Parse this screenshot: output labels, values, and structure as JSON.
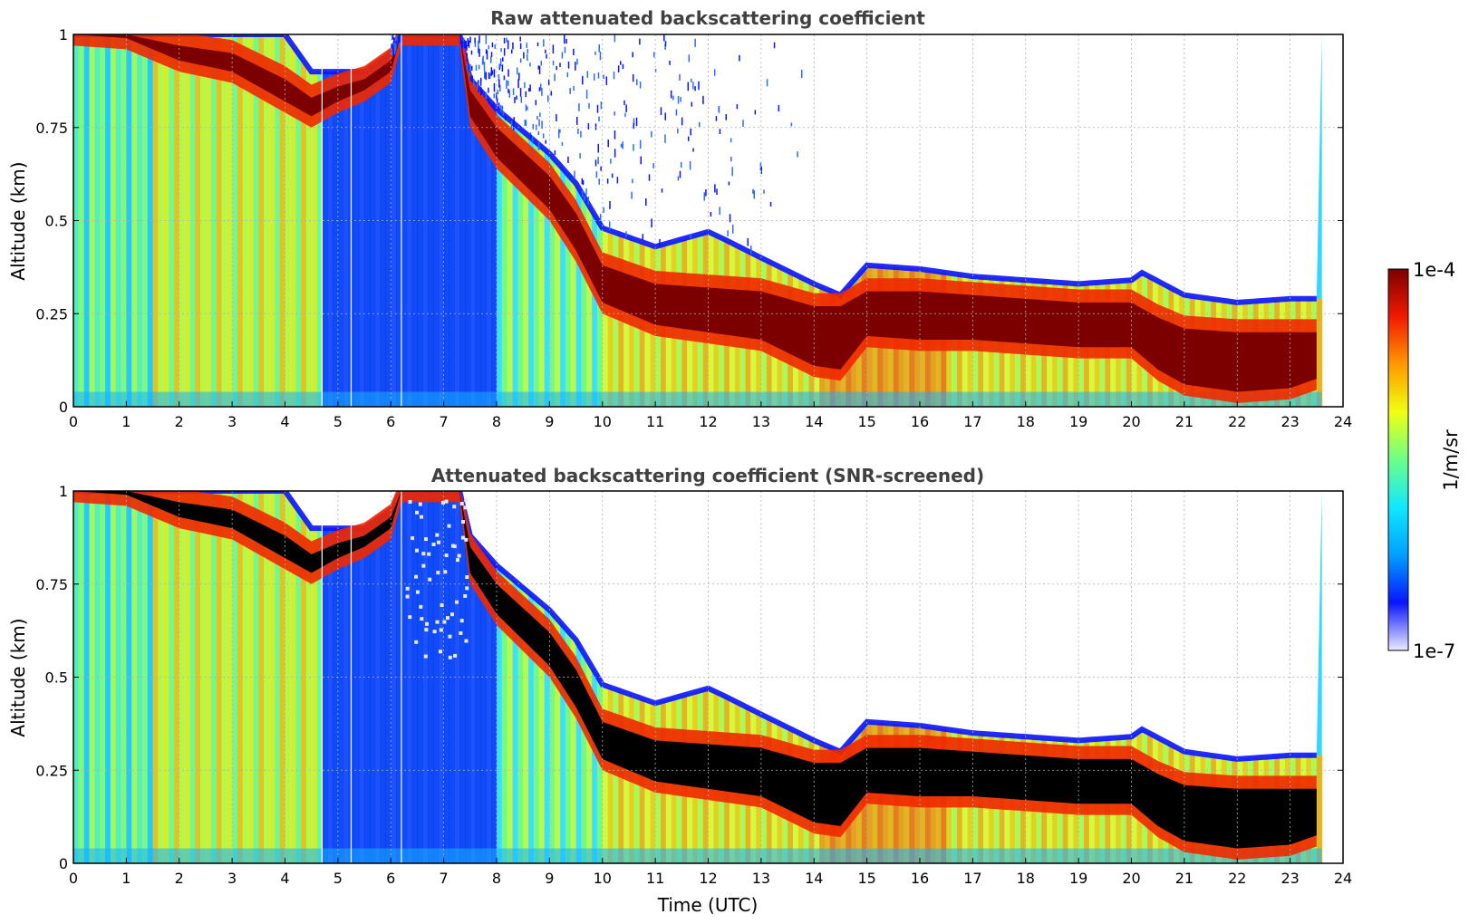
{
  "chart_data": [
    {
      "type": "heatmap",
      "title": "Raw attenuated backscattering coefficient",
      "xlabel": "",
      "ylabel": "Altitude (km)",
      "xlim": [
        0,
        24
      ],
      "ylim": [
        0,
        1
      ],
      "xticks": [
        "0",
        "1",
        "2",
        "3",
        "4",
        "5",
        "6",
        "7",
        "8",
        "9",
        "10",
        "11",
        "12",
        "13",
        "14",
        "15",
        "16",
        "17",
        "18",
        "19",
        "20",
        "21",
        "22",
        "23",
        "24"
      ],
      "yticks": [
        "0",
        "0.25",
        "0.5",
        "0.75",
        "1"
      ],
      "grid": true,
      "screened": false,
      "layer_top_km": {
        "time": [
          0,
          1,
          2,
          3,
          4,
          4.5,
          5,
          5.5,
          6,
          6.2,
          7.3,
          7.5,
          8,
          9,
          9.5,
          10,
          11,
          12,
          12.3,
          13,
          14,
          14.5,
          15,
          16,
          17,
          18,
          19,
          20,
          20.2,
          21,
          22,
          23,
          23.6
        ],
        "top_km": [
          1,
          1,
          1,
          1,
          1,
          0.9,
          0.9,
          0.9,
          0.95,
          1,
          1,
          0.88,
          0.8,
          0.68,
          0.6,
          0.48,
          0.43,
          0.47,
          0.45,
          0.4,
          0.33,
          0.3,
          0.38,
          0.37,
          0.35,
          0.34,
          0.33,
          0.34,
          0.36,
          0.3,
          0.28,
          0.29,
          0.29
        ]
      },
      "layer_core_km": {
        "time": [
          0,
          1,
          2,
          3,
          4,
          4.5,
          5,
          5.5,
          6,
          6.2,
          7.3,
          7.5,
          8,
          9,
          9.5,
          10,
          11,
          12,
          13,
          14,
          14.5,
          15,
          16,
          17,
          18,
          19,
          20,
          20.5,
          21,
          22,
          23,
          23.6
        ],
        "top_km": [
          1,
          1,
          0.97,
          0.95,
          0.88,
          0.83,
          0.86,
          0.88,
          0.93,
          1,
          1,
          0.85,
          0.75,
          0.62,
          0.52,
          0.38,
          0.33,
          0.32,
          0.31,
          0.27,
          0.27,
          0.31,
          0.31,
          0.3,
          0.29,
          0.28,
          0.28,
          0.24,
          0.21,
          0.2,
          0.2,
          0.2
        ],
        "bottom_km": [
          1,
          0.99,
          0.93,
          0.9,
          0.82,
          0.78,
          0.82,
          0.85,
          0.9,
          1,
          1,
          0.78,
          0.67,
          0.53,
          0.42,
          0.28,
          0.22,
          0.2,
          0.18,
          0.11,
          0.1,
          0.19,
          0.18,
          0.18,
          0.17,
          0.16,
          0.16,
          0.1,
          0.06,
          0.04,
          0.05,
          0.08
        ]
      }
    },
    {
      "type": "heatmap",
      "title": "Attenuated backscattering coefficient (SNR-screened)",
      "xlabel": "Time (UTC)",
      "ylabel": "Altitude (km)",
      "xlim": [
        0,
        24
      ],
      "ylim": [
        0,
        1
      ],
      "xticks": [
        "0",
        "1",
        "2",
        "3",
        "4",
        "5",
        "6",
        "7",
        "8",
        "9",
        "10",
        "11",
        "12",
        "13",
        "14",
        "15",
        "16",
        "17",
        "18",
        "19",
        "20",
        "21",
        "22",
        "23",
        "24"
      ],
      "yticks": [
        "0",
        "0.25",
        "0.5",
        "0.75",
        "1"
      ],
      "grid": true,
      "screened": true
    }
  ],
  "colorbar": {
    "label": "1/m/sr",
    "max_label": "1e-4",
    "min_label": "1e-7",
    "scale": "log",
    "colors": [
      "#ebebff",
      "#0a14ff",
      "#00a0ff",
      "#10e8ff",
      "#6cff8a",
      "#f0ff10",
      "#ff9a00",
      "#f01a00",
      "#7d0000"
    ],
    "saturated_color_screened": "#000000"
  }
}
